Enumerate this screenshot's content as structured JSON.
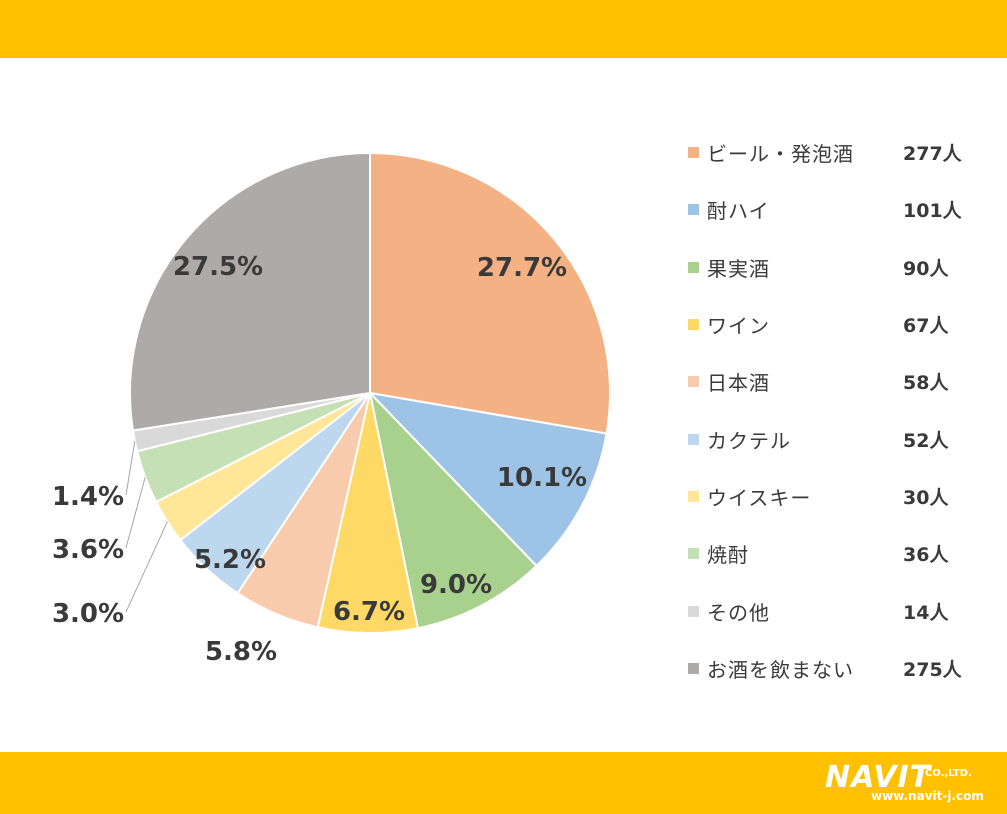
{
  "chart_data": {
    "type": "pie",
    "slices": [
      {
        "name": "ビール・発泡酒",
        "count": "277人",
        "value": 27.7,
        "label": "27.7%",
        "color": "#f4b183"
      },
      {
        "name": "酎ハイ",
        "count": "101人",
        "value": 10.1,
        "label": "10.1%",
        "color": "#9dc3e6"
      },
      {
        "name": "果実酒",
        "count": "90人",
        "value": 9.0,
        "label": "9.0%",
        "color": "#a9d18e"
      },
      {
        "name": "ワイン",
        "count": "67人",
        "value": 6.7,
        "label": "6.7%",
        "color": "#ffd966"
      },
      {
        "name": "日本酒",
        "count": "58人",
        "value": 5.8,
        "label": "5.8%",
        "color": "#f8cbad"
      },
      {
        "name": "カクテル",
        "count": "52人",
        "value": 5.2,
        "label": "5.2%",
        "color": "#bdd7ee"
      },
      {
        "name": "ウイスキー",
        "count": "30人",
        "value": 3.0,
        "label": "3.0%",
        "color": "#ffe699"
      },
      {
        "name": "焼酎",
        "count": "36人",
        "value": 3.6,
        "label": "3.6%",
        "color": "#c5e0b4"
      },
      {
        "name": "その他",
        "count": "14人",
        "value": 1.4,
        "label": "1.4%",
        "color": "#d9d9d9"
      },
      {
        "name": "お酒を飲まない",
        "count": "275人",
        "value": 27.5,
        "label": "27.5%",
        "color": "#aeaaaa"
      }
    ]
  },
  "logo": {
    "name": "NAVIT",
    "suffix": "CO.,LTD.",
    "url": "www.navit-j.com"
  },
  "colors": {
    "band": "#ffc000"
  }
}
